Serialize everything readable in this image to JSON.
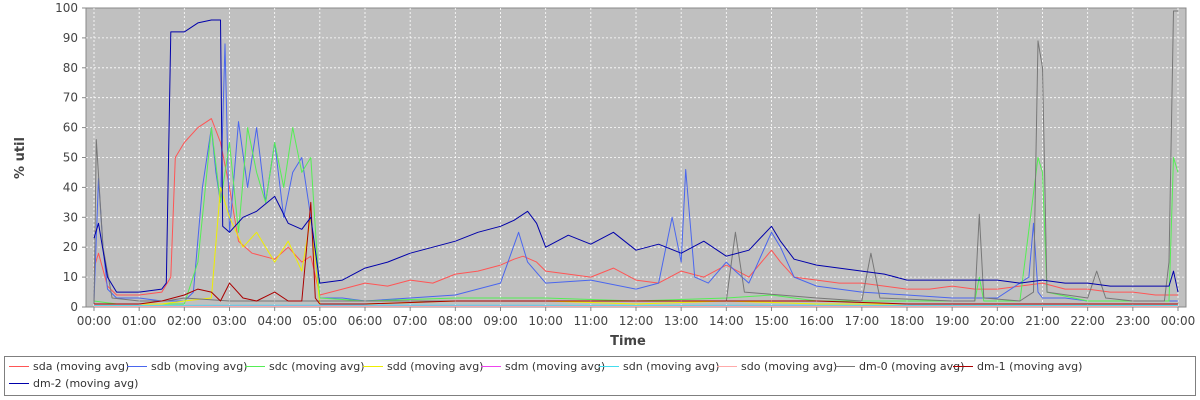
{
  "chart_data": {
    "type": "line",
    "xlabel": "Time",
    "ylabel": "% util",
    "ylim": [
      0,
      100
    ],
    "yticks": [
      "0",
      "10",
      "20",
      "30",
      "40",
      "50",
      "60",
      "70",
      "80",
      "90",
      "100"
    ],
    "xticks": [
      "00:00",
      "01:00",
      "02:00",
      "03:00",
      "04:00",
      "05:00",
      "06:00",
      "07:00",
      "08:00",
      "09:00",
      "10:00",
      "11:00",
      "12:00",
      "13:00",
      "14:00",
      "15:00",
      "16:00",
      "17:00",
      "18:00",
      "19:00",
      "20:00",
      "21:00",
      "22:00",
      "23:00",
      "00:00"
    ],
    "x_unit": "hours since 00:00",
    "grid": true,
    "legend_position": "bottom",
    "background": "#c0c0c0",
    "series": [
      {
        "name": "sda (moving avg)",
        "color": "#ff5555",
        "x": [
          0,
          0.1,
          0.3,
          0.5,
          1.0,
          1.5,
          1.7,
          1.8,
          2.0,
          2.3,
          2.6,
          2.8,
          3.0,
          3.2,
          3.5,
          4.0,
          4.3,
          4.6,
          4.8,
          5.0,
          5.5,
          6.0,
          6.5,
          7.0,
          7.5,
          8.0,
          8.5,
          9.0,
          9.3,
          9.5,
          9.8,
          10.0,
          10.5,
          11.0,
          11.5,
          12.0,
          12.5,
          13.0,
          13.5,
          14.0,
          14.5,
          15.0,
          15.2,
          15.5,
          16.0,
          16.5,
          17.0,
          17.5,
          18.0,
          18.5,
          19.0,
          19.5,
          20.0,
          20.5,
          21.0,
          21.5,
          22.0,
          22.5,
          23.0,
          23.5,
          24.0
        ],
        "y": [
          13,
          18,
          7,
          4,
          4,
          5,
          10,
          50,
          55,
          60,
          63,
          55,
          40,
          22,
          18,
          16,
          20,
          15,
          17,
          4,
          6,
          8,
          7,
          9,
          8,
          11,
          12,
          14,
          16,
          17,
          15,
          12,
          11,
          10,
          13,
          9,
          8,
          12,
          10,
          14,
          10,
          19,
          15,
          10,
          9,
          8,
          8,
          7,
          6,
          6,
          7,
          6,
          6,
          7,
          8,
          6,
          6,
          5,
          5,
          4,
          4
        ]
      },
      {
        "name": "sdb (moving avg)",
        "color": "#4a66ee",
        "x": [
          0,
          0.1,
          0.2,
          0.3,
          0.5,
          1.0,
          1.5,
          2.0,
          2.2,
          2.4,
          2.6,
          2.7,
          2.8,
          2.9,
          3.0,
          3.2,
          3.4,
          3.6,
          3.8,
          4.0,
          4.2,
          4.4,
          4.6,
          4.8,
          5.0,
          5.5,
          6.0,
          7.0,
          8.0,
          9.0,
          9.4,
          9.6,
          10.0,
          11.0,
          12.0,
          12.5,
          12.8,
          13.0,
          13.1,
          13.3,
          13.6,
          14.0,
          14.2,
          14.5,
          15.0,
          15.2,
          15.5,
          16.0,
          17.0,
          18.0,
          19.0,
          20.0,
          20.7,
          20.8,
          20.9,
          21.0,
          21.5,
          22.0,
          23.0,
          24.0
        ],
        "y": [
          2,
          43,
          20,
          6,
          3,
          3,
          2,
          2,
          5,
          40,
          60,
          45,
          35,
          88,
          25,
          62,
          40,
          60,
          35,
          55,
          30,
          45,
          50,
          30,
          3,
          3,
          2,
          3,
          4,
          8,
          25,
          15,
          8,
          9,
          6,
          8,
          30,
          15,
          46,
          10,
          8,
          15,
          12,
          8,
          25,
          20,
          10,
          7,
          5,
          4,
          3,
          3,
          10,
          28,
          5,
          3,
          3,
          2,
          2,
          2
        ]
      },
      {
        "name": "sdc (moving avg)",
        "color": "#55ee55",
        "x": [
          0,
          0.5,
          1.0,
          1.5,
          2.0,
          2.3,
          2.6,
          2.8,
          3.0,
          3.2,
          3.4,
          3.6,
          3.8,
          4.0,
          4.2,
          4.4,
          4.6,
          4.8,
          5.0,
          6.0,
          8.0,
          10.0,
          12.0,
          14.0,
          15.0,
          16.0,
          18.0,
          19.5,
          19.6,
          19.7,
          20.5,
          20.9,
          21.0,
          21.1,
          22.0,
          23.0,
          23.8,
          23.9,
          24.0
        ],
        "y": [
          2,
          1,
          1,
          1,
          1,
          15,
          60,
          35,
          55,
          25,
          60,
          45,
          35,
          55,
          40,
          60,
          45,
          50,
          3,
          2,
          3,
          3,
          2,
          3,
          4,
          2,
          2,
          2,
          10,
          2,
          2,
          50,
          45,
          5,
          2,
          2,
          2,
          50,
          45
        ]
      },
      {
        "name": "sdd (moving avg)",
        "color": "#eeee00",
        "x": [
          0,
          1.5,
          2.0,
          2.6,
          2.8,
          3.0,
          3.3,
          3.6,
          4.0,
          4.3,
          4.6,
          4.8,
          5.0,
          6.0,
          8.0,
          10.0,
          12.0,
          14.0,
          16.0,
          18.0,
          20.0,
          22.0,
          24.0
        ],
        "y": [
          1,
          1,
          2,
          3,
          40,
          30,
          20,
          25,
          15,
          22,
          12,
          30,
          1,
          1,
          2,
          2,
          1,
          2,
          1,
          1,
          1,
          1,
          1
        ]
      },
      {
        "name": "sdm (moving avg)",
        "color": "#ee44ee",
        "x": [
          0,
          4,
          8,
          12,
          16,
          20,
          24
        ],
        "y": [
          0.3,
          0.3,
          0.3,
          0.3,
          0.3,
          0.3,
          0.3
        ]
      },
      {
        "name": "sdn (moving avg)",
        "color": "#44ddee",
        "x": [
          0,
          4,
          8,
          12,
          16,
          20,
          24
        ],
        "y": [
          0.5,
          0.6,
          0.6,
          0.5,
          0.6,
          0.5,
          0.5
        ]
      },
      {
        "name": "sdo (moving avg)",
        "color": "#ffaaaa",
        "x": [
          0,
          4,
          8,
          12,
          16,
          20,
          24
        ],
        "y": [
          0.2,
          0.2,
          0.2,
          0.2,
          0.2,
          0.2,
          0.2
        ]
      },
      {
        "name": "dm-0 (moving avg)",
        "color": "#777777",
        "x": [
          0,
          0.05,
          0.2,
          0.4,
          1.0,
          1.6,
          2.0,
          3.0,
          4.0,
          5.0,
          8.0,
          12.0,
          14.0,
          14.2,
          14.4,
          16.0,
          17.0,
          17.2,
          17.4,
          19.0,
          19.5,
          19.6,
          19.7,
          20.5,
          20.8,
          20.9,
          21.0,
          21.1,
          22.0,
          22.2,
          22.4,
          23.0,
          23.7,
          23.8,
          23.9,
          24.0
        ],
        "y": [
          1,
          56,
          20,
          3,
          2,
          2,
          3,
          2,
          2,
          2,
          2,
          2,
          2,
          25,
          5,
          3,
          2,
          18,
          3,
          2,
          2,
          31,
          3,
          2,
          5,
          89,
          80,
          5,
          3,
          12,
          3,
          2,
          2,
          15,
          99,
          99
        ]
      },
      {
        "name": "dm-1 (moving avg)",
        "color": "#aa0000",
        "x": [
          0,
          0.5,
          1.0,
          1.5,
          2.0,
          2.3,
          2.6,
          2.8,
          3.0,
          3.3,
          3.6,
          4.0,
          4.3,
          4.6,
          4.8,
          4.9,
          5.0,
          6.0,
          8.0,
          10.0,
          12.0,
          14.0,
          16.0,
          18.0,
          20.0,
          22.0,
          24.0
        ],
        "y": [
          1,
          1,
          1,
          2,
          4,
          6,
          5,
          2,
          8,
          3,
          2,
          5,
          2,
          2,
          35,
          3,
          1,
          1,
          2,
          2,
          2,
          2,
          2,
          1,
          1,
          1,
          1
        ]
      },
      {
        "name": "dm-2 (moving avg)",
        "color": "#0000aa",
        "x": [
          0,
          0.1,
          0.3,
          0.5,
          1.0,
          1.5,
          1.6,
          1.7,
          2.0,
          2.3,
          2.6,
          2.8,
          2.85,
          3.0,
          3.3,
          3.6,
          4.0,
          4.3,
          4.6,
          4.8,
          5.0,
          5.5,
          6.0,
          6.5,
          7.0,
          7.5,
          8.0,
          8.5,
          9.0,
          9.3,
          9.6,
          9.8,
          10.0,
          10.5,
          11.0,
          11.5,
          12.0,
          12.5,
          13.0,
          13.5,
          14.0,
          14.5,
          15.0,
          15.2,
          15.5,
          16.0,
          16.5,
          17.0,
          17.5,
          18.0,
          18.5,
          19.0,
          19.5,
          20.0,
          20.5,
          21.0,
          21.5,
          22.0,
          22.5,
          23.0,
          23.5,
          23.8,
          23.9,
          24.0
        ],
        "y": [
          23,
          28,
          10,
          5,
          5,
          6,
          8,
          92,
          92,
          95,
          96,
          96,
          27,
          25,
          30,
          32,
          37,
          28,
          26,
          30,
          8,
          9,
          13,
          15,
          18,
          20,
          22,
          25,
          27,
          29,
          32,
          28,
          20,
          24,
          21,
          25,
          19,
          21,
          18,
          22,
          17,
          19,
          27,
          22,
          16,
          14,
          13,
          12,
          11,
          9,
          9,
          9,
          9,
          9,
          8,
          9,
          8,
          8,
          7,
          7,
          7,
          7,
          12,
          5
        ]
      }
    ]
  }
}
